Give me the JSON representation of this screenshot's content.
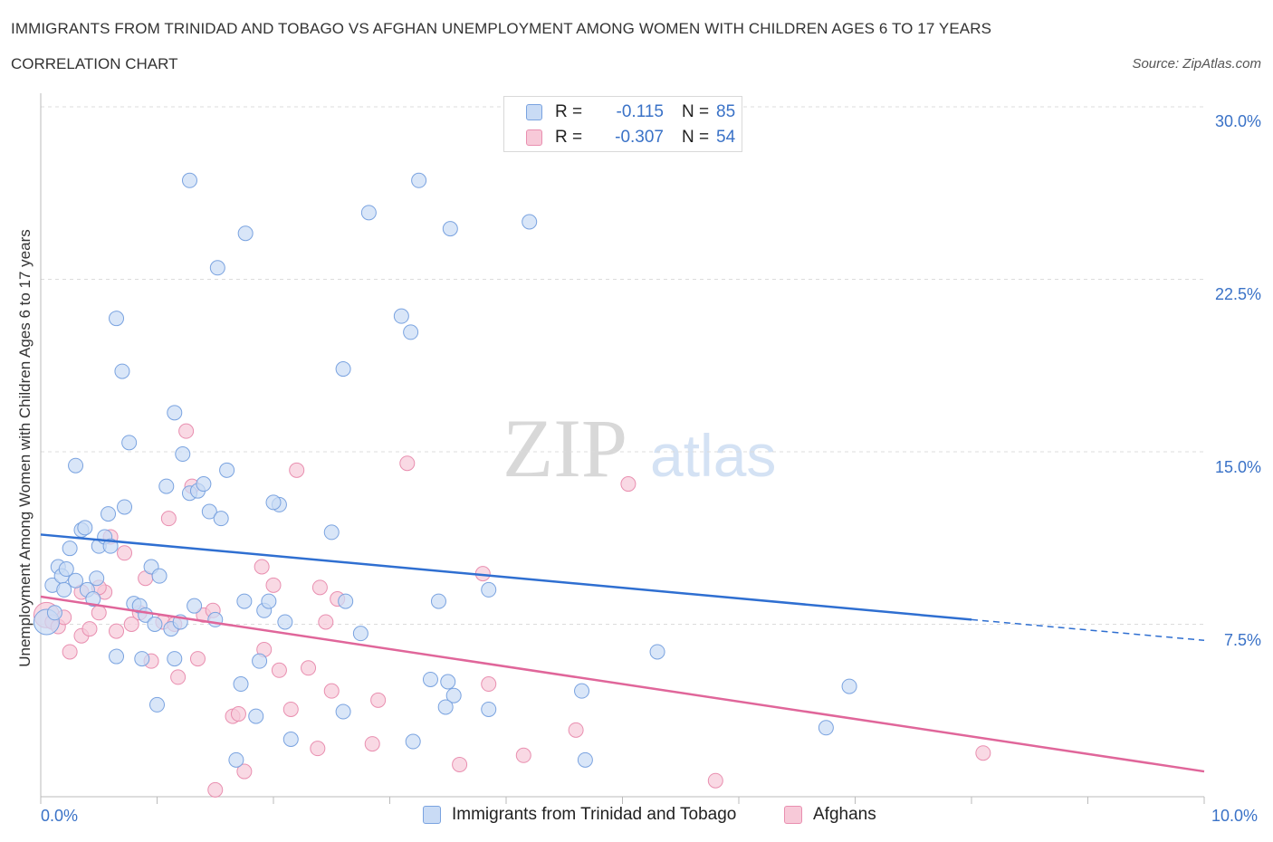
{
  "header": {
    "title": "IMMIGRANTS FROM TRINIDAD AND TOBAGO VS AFGHAN UNEMPLOYMENT AMONG WOMEN WITH CHILDREN AGES 6 TO 17 YEARS",
    "subtitle": "CORRELATION CHART",
    "source": "Source: ZipAtlas.com"
  },
  "watermark": {
    "zip": "ZIP",
    "atlas": "atlas"
  },
  "legend": {
    "r_label": "R =",
    "n_label": "N =",
    "blue": {
      "r": "-0.115",
      "n": "85"
    },
    "pink": {
      "r": "-0.307",
      "n": "54"
    }
  },
  "colors": {
    "blue_fill": "#c9dbf5",
    "blue_stroke": "#7aa3e0",
    "blue_line": "#2f6fd1",
    "pink_fill": "#f7c9d8",
    "pink_stroke": "#e98fb0",
    "pink_line": "#e0669a",
    "grid": "#dcdcdc",
    "tick_text": "#3a72c7"
  },
  "chart_data": {
    "type": "scatter",
    "title": "IMMIGRANTS FROM TRINIDAD AND TOBAGO VS AFGHAN UNEMPLOYMENT AMONG WOMEN WITH CHILDREN AGES 6 TO 17 YEARS",
    "subtitle": "CORRELATION CHART",
    "ylabel": "Unemployment Among Women with Children Ages 6 to 17 years",
    "xlabel": "",
    "xlim": [
      0,
      10
    ],
    "ylim": [
      0,
      30
    ],
    "x_tick_labels": [
      "0.0%",
      "10.0%"
    ],
    "y_tick_labels": [
      "7.5%",
      "15.0%",
      "22.5%",
      "30.0%"
    ],
    "y_ticks": [
      7.5,
      15,
      22.5,
      30
    ],
    "grid": true,
    "legend_position": "top-center",
    "series": [
      {
        "name": "Immigrants from Trinidad and Tobago",
        "color": "#7aa3e0",
        "r": -0.115,
        "n": 85,
        "trend": {
          "x": [
            0,
            8.0
          ],
          "y": [
            11.4,
            7.7
          ],
          "dashed_to": [
            10.0,
            6.8
          ]
        },
        "points": [
          [
            0.05,
            7.6
          ],
          [
            0.1,
            9.2
          ],
          [
            0.12,
            8.0
          ],
          [
            0.15,
            10.0
          ],
          [
            0.18,
            9.6
          ],
          [
            0.2,
            9.0
          ],
          [
            0.22,
            9.9
          ],
          [
            0.25,
            10.8
          ],
          [
            0.3,
            9.4
          ],
          [
            0.35,
            11.6
          ],
          [
            0.38,
            11.7
          ],
          [
            0.4,
            9.0
          ],
          [
            0.45,
            8.6
          ],
          [
            0.48,
            9.5
          ],
          [
            0.5,
            10.9
          ],
          [
            0.55,
            11.3
          ],
          [
            0.58,
            12.3
          ],
          [
            0.6,
            10.9
          ],
          [
            0.65,
            6.1
          ],
          [
            0.72,
            12.6
          ],
          [
            0.76,
            15.4
          ],
          [
            0.8,
            8.4
          ],
          [
            0.85,
            8.3
          ],
          [
            0.87,
            6.0
          ],
          [
            0.9,
            7.9
          ],
          [
            0.95,
            10.0
          ],
          [
            0.98,
            7.5
          ],
          [
            1.0,
            4.0
          ],
          [
            1.02,
            9.6
          ],
          [
            1.08,
            13.5
          ],
          [
            1.12,
            7.3
          ],
          [
            1.15,
            6.0
          ],
          [
            1.2,
            7.6
          ],
          [
            1.22,
            14.9
          ],
          [
            1.28,
            13.2
          ],
          [
            1.32,
            8.3
          ],
          [
            1.35,
            13.3
          ],
          [
            1.4,
            13.6
          ],
          [
            1.45,
            12.4
          ],
          [
            1.5,
            7.7
          ],
          [
            1.55,
            12.1
          ],
          [
            1.6,
            14.2
          ],
          [
            1.72,
            4.9
          ],
          [
            1.75,
            8.5
          ],
          [
            1.85,
            3.5
          ],
          [
            1.88,
            5.9
          ],
          [
            1.92,
            8.1
          ],
          [
            1.96,
            8.5
          ],
          [
            2.05,
            12.7
          ],
          [
            2.1,
            7.6
          ],
          [
            2.15,
            2.5
          ],
          [
            2.6,
            3.7
          ],
          [
            2.62,
            8.5
          ],
          [
            2.75,
            7.1
          ],
          [
            2.5,
            11.5
          ],
          [
            3.2,
            2.4
          ],
          [
            3.35,
            5.1
          ],
          [
            3.5,
            5.0
          ],
          [
            3.55,
            4.4
          ],
          [
            3.48,
            3.9
          ],
          [
            3.42,
            8.5
          ],
          [
            3.85,
            9.0
          ],
          [
            3.85,
            3.8
          ],
          [
            4.65,
            4.6
          ],
          [
            4.68,
            1.6
          ],
          [
            5.3,
            6.3
          ],
          [
            6.75,
            3.0
          ],
          [
            6.95,
            4.8
          ],
          [
            1.68,
            1.6
          ],
          [
            0.65,
            20.8
          ],
          [
            0.7,
            18.5
          ],
          [
            1.28,
            26.8
          ],
          [
            1.52,
            23.0
          ],
          [
            1.76,
            24.5
          ],
          [
            2.6,
            18.6
          ],
          [
            2.82,
            25.4
          ],
          [
            3.1,
            20.9
          ],
          [
            3.18,
            20.2
          ],
          [
            3.25,
            26.8
          ],
          [
            3.52,
            24.7
          ],
          [
            4.2,
            25.0
          ],
          [
            0.3,
            14.4
          ],
          [
            1.15,
            16.7
          ],
          [
            2.0,
            12.8
          ]
        ]
      },
      {
        "name": "Afghans",
        "color": "#e98fb0",
        "r": -0.307,
        "n": 54,
        "trend": {
          "x": [
            0,
            10.0
          ],
          "y": [
            8.7,
            1.1
          ]
        },
        "points": [
          [
            0.05,
            7.9
          ],
          [
            0.1,
            7.6
          ],
          [
            0.15,
            7.4
          ],
          [
            0.2,
            7.8
          ],
          [
            0.25,
            6.3
          ],
          [
            0.35,
            7.0
          ],
          [
            0.42,
            7.3
          ],
          [
            0.5,
            8.0
          ],
          [
            0.55,
            8.9
          ],
          [
            0.6,
            11.3
          ],
          [
            0.65,
            7.2
          ],
          [
            0.72,
            10.6
          ],
          [
            0.78,
            7.5
          ],
          [
            0.85,
            8.0
          ],
          [
            0.9,
            9.5
          ],
          [
            0.95,
            5.9
          ],
          [
            1.05,
            7.6
          ],
          [
            1.1,
            12.1
          ],
          [
            1.15,
            7.5
          ],
          [
            1.18,
            5.2
          ],
          [
            1.25,
            15.9
          ],
          [
            1.3,
            13.5
          ],
          [
            1.35,
            6.0
          ],
          [
            1.4,
            7.9
          ],
          [
            1.48,
            8.1
          ],
          [
            1.5,
            0.3
          ],
          [
            1.65,
            3.5
          ],
          [
            1.7,
            3.6
          ],
          [
            1.75,
            1.1
          ],
          [
            1.9,
            10.0
          ],
          [
            1.92,
            6.4
          ],
          [
            2.0,
            9.2
          ],
          [
            2.05,
            5.5
          ],
          [
            2.15,
            3.8
          ],
          [
            2.2,
            14.2
          ],
          [
            2.3,
            5.6
          ],
          [
            2.38,
            2.1
          ],
          [
            2.4,
            9.1
          ],
          [
            2.45,
            7.6
          ],
          [
            2.5,
            4.6
          ],
          [
            2.55,
            8.6
          ],
          [
            2.85,
            2.3
          ],
          [
            2.9,
            4.2
          ],
          [
            3.15,
            14.5
          ],
          [
            3.6,
            1.4
          ],
          [
            3.8,
            9.7
          ],
          [
            3.85,
            4.9
          ],
          [
            4.15,
            1.8
          ],
          [
            4.6,
            2.9
          ],
          [
            5.05,
            13.6
          ],
          [
            5.8,
            0.7
          ],
          [
            8.1,
            1.9
          ],
          [
            0.35,
            8.9
          ],
          [
            0.5,
            9.1
          ]
        ]
      }
    ]
  },
  "bottom_legend": {
    "blue_label": "Immigrants from Trinidad and Tobago",
    "pink_label": "Afghans"
  }
}
